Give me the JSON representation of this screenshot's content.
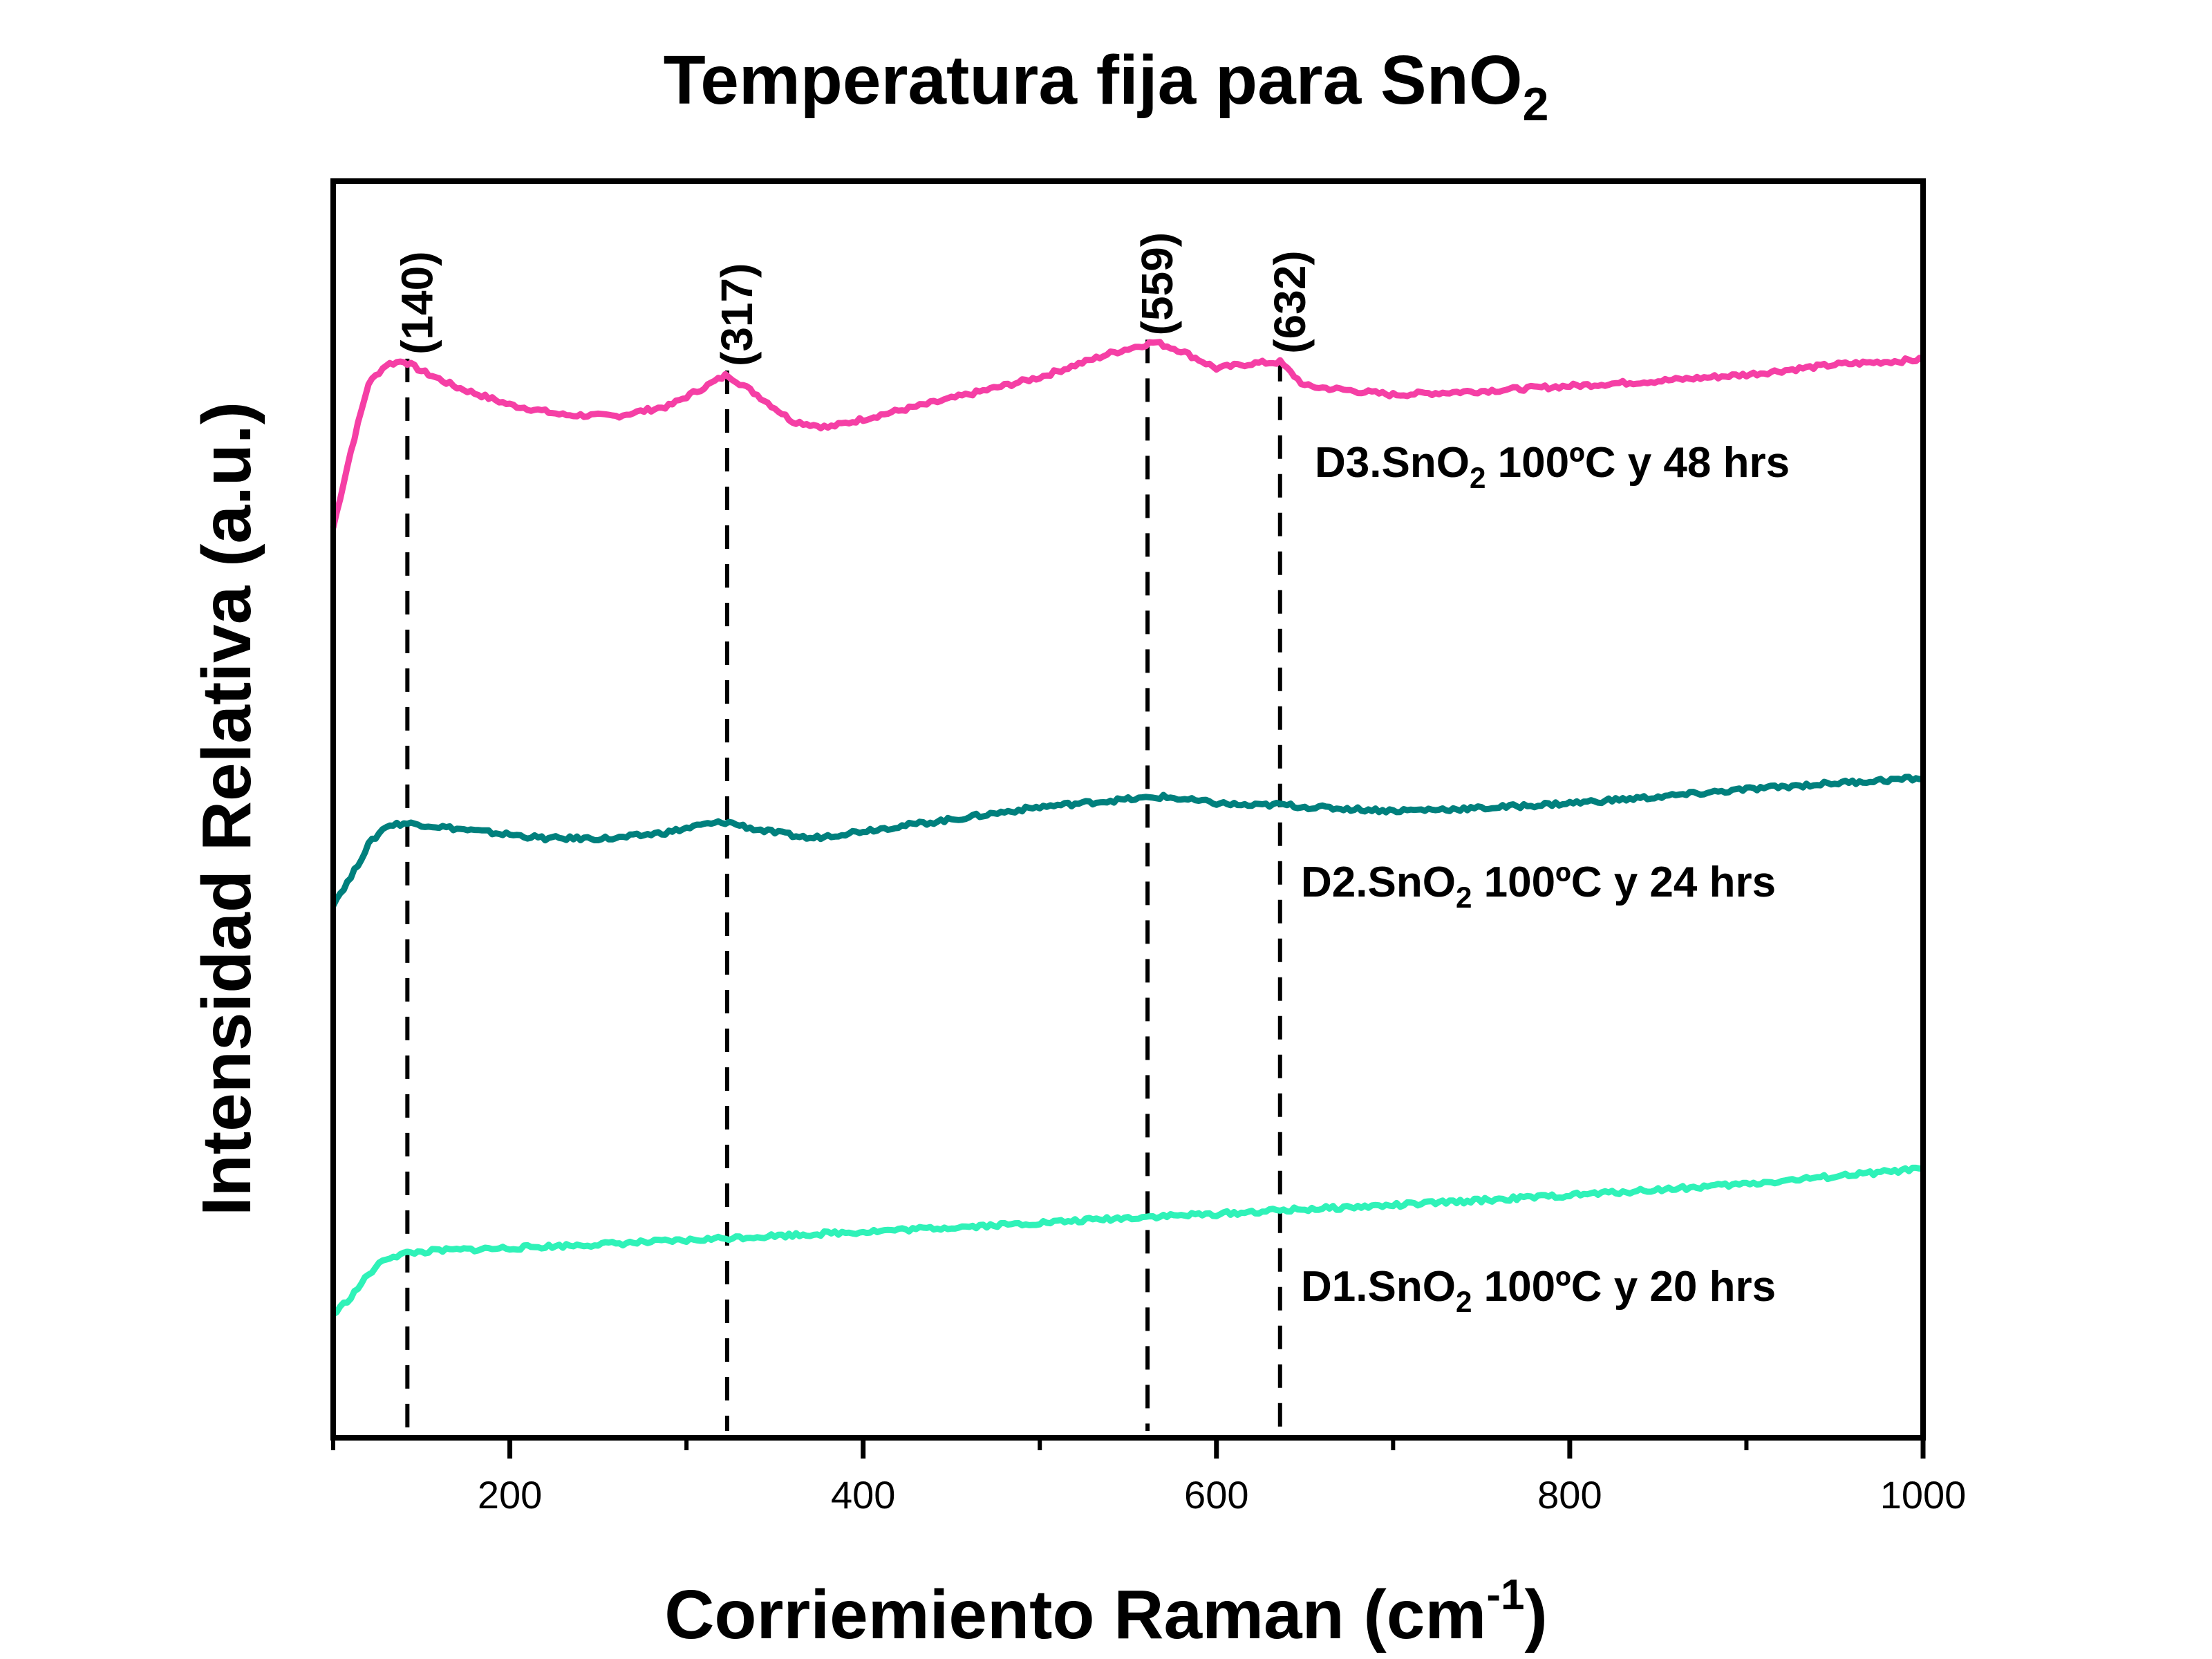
{
  "chart_data": {
    "type": "line",
    "title": {
      "main": "Temperatura fija para SnO",
      "sub": "2"
    },
    "xlabel": {
      "main": "Corriemiento Raman (cm",
      "sup": "-1",
      "tail": ")"
    },
    "ylabel": "Intensidad Relativa (a.u.)",
    "xlim": [
      100,
      1000
    ],
    "ylim": [
      0,
      100
    ],
    "x_ticks": [
      200,
      400,
      600,
      800,
      1000
    ],
    "x_minor_ticks": [
      100,
      300,
      500,
      700,
      900
    ],
    "y_ticks_shown": false,
    "grid": false,
    "legend": "inline labels next to each trace",
    "peaks": [
      {
        "x": 142,
        "label": "(140)"
      },
      {
        "x": 323,
        "label": "(317)"
      },
      {
        "x": 561,
        "label": "(559)"
      },
      {
        "x": 636,
        "label": "(632)"
      }
    ],
    "series": [
      {
        "label": {
          "pre": "D3.SnO",
          "sub": "2",
          "post": " 100ºC y 48 hrs"
        },
        "color": "#f53fa5",
        "x": [
          100,
          110,
          120,
          130,
          140,
          150,
          170,
          200,
          230,
          260,
          290,
          310,
          323,
          340,
          360,
          380,
          410,
          450,
          500,
          540,
          565,
          580,
          600,
          620,
          636,
          650,
          700,
          750,
          800,
          850,
          900,
          950,
          1000
        ],
        "y": [
          72.4,
          78.5,
          83.9,
          85.4,
          85.7,
          84.9,
          83.6,
          82.2,
          81.4,
          81.3,
          82.1,
          83.6,
          84.6,
          83.0,
          80.9,
          80.4,
          81.4,
          82.7,
          84.4,
          86.3,
          87.2,
          86.5,
          85.1,
          85.5,
          85.6,
          83.7,
          83.0,
          83.3,
          83.7,
          84.1,
          84.6,
          85.4,
          85.8
        ]
      },
      {
        "label": {
          "pre": "D2.SnO",
          "sub": "2",
          "post": " 100ºC y 24 hrs"
        },
        "color": "#00807d",
        "x": [
          100,
          110,
          120,
          130,
          140,
          150,
          180,
          220,
          260,
          290,
          310,
          323,
          340,
          370,
          400,
          450,
          500,
          540,
          570,
          600,
          620,
          636,
          650,
          700,
          750,
          800,
          850,
          900,
          950,
          1000
        ],
        "y": [
          42.5,
          44.6,
          47.2,
          48.7,
          48.9,
          48.8,
          48.3,
          47.7,
          47.7,
          48.2,
          48.8,
          49.0,
          48.4,
          47.7,
          48.3,
          49.2,
          50.2,
          50.7,
          51.0,
          50.5,
          50.3,
          50.4,
          50.2,
          49.9,
          50.1,
          50.5,
          51.0,
          51.6,
          52.1,
          52.5
        ]
      },
      {
        "label": {
          "pre": "D1.SnO",
          "sub": "2",
          "post": " 100ºC y 20 hrs"
        },
        "color": "#2ff2b8",
        "x": [
          100,
          110,
          120,
          130,
          142,
          160,
          200,
          250,
          300,
          323,
          400,
          500,
          561,
          600,
          636,
          700,
          800,
          900,
          1000
        ],
        "y": [
          9.8,
          11.2,
          13.0,
          14.3,
          14.7,
          14.9,
          15.1,
          15.4,
          15.7,
          15.9,
          16.4,
          17.1,
          17.6,
          17.8,
          18.1,
          18.5,
          19.3,
          20.2,
          21.4
        ]
      }
    ]
  }
}
